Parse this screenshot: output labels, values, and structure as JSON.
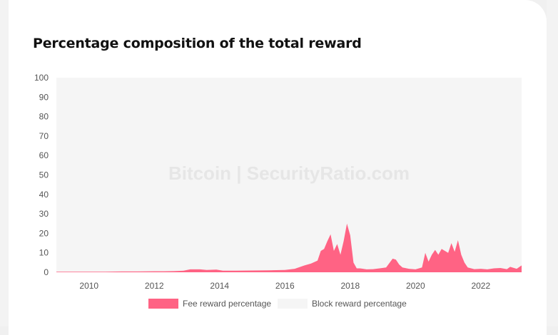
{
  "header": {
    "title": "Percentage composition of the total reward"
  },
  "watermark": "Bitcoin | SecurityRatio.com",
  "colors": {
    "fee": "#ff6384",
    "block": "#f5f5f5"
  },
  "legend": {
    "fee": "Fee reward percentage",
    "block": "Block reward percentage"
  },
  "chart_data": {
    "type": "area",
    "stacked": true,
    "xlabel": "",
    "ylabel": "",
    "xlim": [
      2009.0,
      2023.25
    ],
    "ylim": [
      0,
      100
    ],
    "yticks": [
      0,
      10,
      20,
      30,
      40,
      50,
      60,
      70,
      80,
      90,
      100
    ],
    "xticks": [
      2010,
      2012,
      2014,
      2016,
      2018,
      2020,
      2022
    ],
    "x": [
      2009.0,
      2009.5,
      2010.0,
      2010.5,
      2011.0,
      2011.5,
      2012.0,
      2012.3,
      2012.6,
      2012.9,
      2013.1,
      2013.4,
      2013.6,
      2013.9,
      2014.1,
      2014.5,
      2015.0,
      2015.5,
      2016.0,
      2016.3,
      2016.6,
      2016.8,
      2017.0,
      2017.1,
      2017.2,
      2017.3,
      2017.4,
      2017.5,
      2017.6,
      2017.7,
      2017.8,
      2017.9,
      2018.0,
      2018.1,
      2018.2,
      2018.3,
      2018.5,
      2018.7,
      2018.9,
      2019.1,
      2019.3,
      2019.4,
      2019.5,
      2019.6,
      2019.8,
      2020.0,
      2020.2,
      2020.3,
      2020.4,
      2020.5,
      2020.6,
      2020.7,
      2020.8,
      2020.9,
      2021.0,
      2021.1,
      2021.2,
      2021.3,
      2021.4,
      2021.5,
      2021.6,
      2021.8,
      2022.0,
      2022.2,
      2022.4,
      2022.6,
      2022.8,
      2022.9,
      2023.1,
      2023.25
    ],
    "series": [
      {
        "name": "Fee reward percentage",
        "values": [
          0.3,
          0.3,
          0.3,
          0.3,
          0.4,
          0.4,
          0.5,
          0.5,
          0.6,
          0.8,
          1.5,
          1.5,
          1.2,
          1.4,
          0.8,
          0.8,
          0.9,
          1.0,
          1.2,
          1.8,
          3.5,
          4.5,
          6.0,
          11.0,
          12.0,
          16.0,
          19.5,
          11.0,
          14.5,
          9.0,
          16.0,
          25.0,
          19.0,
          5.0,
          2.0,
          2.0,
          1.5,
          1.6,
          2.0,
          2.5,
          7.0,
          6.5,
          4.0,
          2.5,
          1.8,
          1.5,
          2.5,
          10.0,
          5.5,
          9.0,
          11.5,
          9.0,
          12.0,
          11.0,
          10.0,
          15.0,
          10.5,
          16.5,
          9.0,
          5.0,
          2.5,
          1.6,
          1.8,
          1.5,
          2.0,
          2.2,
          1.6,
          2.8,
          1.8,
          3.5
        ]
      },
      {
        "name": "Block reward percentage"
      }
    ]
  }
}
